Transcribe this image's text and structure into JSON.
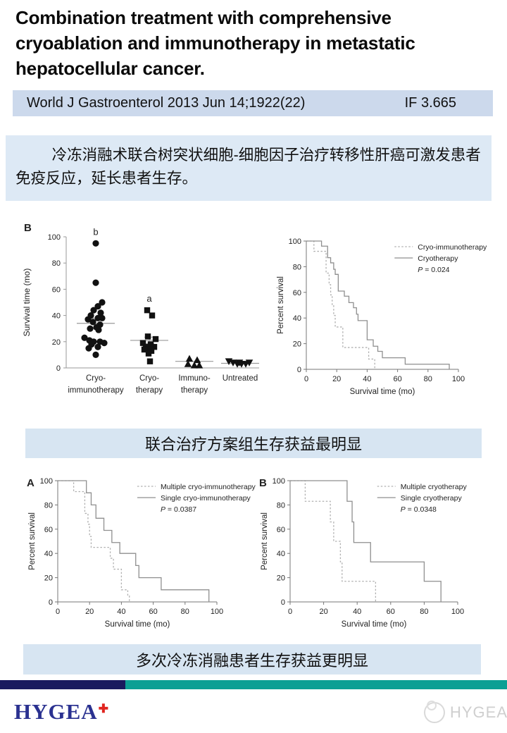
{
  "title": "Combination treatment with comprehensive cryoablation and immunotherapy in metastatic hepatocellular cancer.",
  "citation": {
    "journal": "World J Gastroenterol 2013 Jun 14;1922(22)",
    "impact_factor": "IF 3.665"
  },
  "summary_cn": "冷冻消融术联合树突状细胞-细胞因子治疗转移性肝癌可激发患者免疫反应，延长患者生存。",
  "caption1": "联合治疗方案组生存获益最明显",
  "caption2": "多次冷冻消融患者生存获益更明显",
  "footer": {
    "brand": "HYGEA",
    "brand_mark": "✚",
    "watermark": "HYGEA"
  },
  "colors": {
    "citation_bg": "#ccd9ec",
    "summary_bg": "#dde9f5",
    "caption_bg": "#d7e5f2",
    "navy_bar": "#191a5e",
    "teal_bar": "#0b9f94",
    "brand_navy": "#2a3190",
    "brand_red": "#e0251f",
    "km_solid": "#8f8f8f",
    "km_dotted": "#b0b0b0",
    "axis": "#777777",
    "marker": "#111111"
  },
  "chart_data": [
    {
      "id": "dotplot",
      "type": "scatter",
      "panel_label": "B",
      "ylabel": "Survival time (mo)",
      "ylim": [
        0,
        100
      ],
      "yticks": [
        0,
        20,
        40,
        60,
        80,
        100
      ],
      "groups": [
        {
          "label_lines": [
            "Cryo-",
            "immunotherapy"
          ],
          "marker": "circle",
          "annotation": "b",
          "mean": 34,
          "sem": 4,
          "points": [
            [
              0,
              95
            ],
            [
              0,
              65
            ],
            [
              9,
              50
            ],
            [
              3,
              47
            ],
            [
              -3,
              44
            ],
            [
              7,
              42
            ],
            [
              -7,
              40
            ],
            [
              3,
              38
            ],
            [
              9,
              38
            ],
            [
              -11,
              37
            ],
            [
              -4,
              35
            ],
            [
              6,
              33
            ],
            [
              1,
              31
            ],
            [
              -8,
              30
            ],
            [
              4,
              29
            ],
            [
              -16,
              23
            ],
            [
              -9,
              21
            ],
            [
              -3,
              20
            ],
            [
              6,
              20
            ],
            [
              12,
              19
            ],
            [
              -6,
              18
            ],
            [
              3,
              16
            ],
            [
              -10,
              15
            ],
            [
              0,
              10
            ]
          ]
        },
        {
          "label_lines": [
            "Cryo-",
            "therapy"
          ],
          "marker": "square",
          "annotation": "a",
          "mean": 21,
          "sem": 2.5,
          "points": [
            [
              -3,
              44
            ],
            [
              4,
              40
            ],
            [
              -2,
              24
            ],
            [
              9,
              22
            ],
            [
              -9,
              19
            ],
            [
              2,
              18
            ],
            [
              -5,
              16
            ],
            [
              7,
              16
            ],
            [
              1,
              15
            ],
            [
              -7,
              14
            ],
            [
              3,
              13
            ],
            [
              -1,
              11
            ],
            [
              1,
              5
            ]
          ]
        },
        {
          "label_lines": [
            "Immuno-",
            "therapy"
          ],
          "marker": "triangle-up",
          "annotation": "",
          "mean": 5,
          "sem": null,
          "points": [
            [
              -7,
              7
            ],
            [
              4,
              6
            ],
            [
              -9,
              3
            ],
            [
              0,
              2
            ],
            [
              7,
              2
            ]
          ]
        },
        {
          "label_lines": [
            "Untreated"
          ],
          "marker": "triangle-down",
          "annotation": "",
          "mean": 3.5,
          "sem": null,
          "points": [
            [
              -16,
              5
            ],
            [
              -10,
              4
            ],
            [
              -4,
              3
            ],
            [
              2,
              3
            ],
            [
              8,
              3
            ],
            [
              13,
              4
            ],
            [
              -1,
              4
            ]
          ]
        }
      ]
    },
    {
      "id": "km-main",
      "type": "line",
      "panel_label": "",
      "xlabel": "Survival time (mo)",
      "ylabel": "Percent survival",
      "xlim": [
        0,
        100
      ],
      "ylim": [
        0,
        100
      ],
      "xticks": [
        0,
        20,
        40,
        60,
        80,
        100
      ],
      "yticks": [
        0,
        20,
        40,
        60,
        80,
        100
      ],
      "p_value": "P = 0.024",
      "legend_x": 58,
      "series": [
        {
          "name": "Cryo-immunotherapy",
          "style": "dotted",
          "steps": [
            [
              0,
              100
            ],
            [
              5,
              92
            ],
            [
              13,
              75
            ],
            [
              15,
              66
            ],
            [
              16,
              58
            ],
            [
              17,
              50
            ],
            [
              18,
              42
            ],
            [
              19,
              33
            ],
            [
              24,
              17
            ],
            [
              41,
              8
            ],
            [
              45,
              0
            ]
          ]
        },
        {
          "name": "Cryotherapy",
          "style": "solid",
          "steps": [
            [
              0,
              100
            ],
            [
              10,
              96
            ],
            [
              14,
              87
            ],
            [
              16,
              83
            ],
            [
              18,
              78
            ],
            [
              19,
              74
            ],
            [
              21,
              61
            ],
            [
              25,
              57
            ],
            [
              28,
              52
            ],
            [
              31,
              48
            ],
            [
              33,
              43
            ],
            [
              34,
              38
            ],
            [
              40,
              23
            ],
            [
              44,
              18
            ],
            [
              47,
              14
            ],
            [
              50,
              9
            ],
            [
              65,
              4
            ],
            [
              94,
              0
            ]
          ]
        }
      ]
    },
    {
      "id": "km-a",
      "type": "line",
      "panel_label": "A",
      "xlabel": "Survival time (mo)",
      "ylabel": "Percent survival",
      "xlim": [
        0,
        100
      ],
      "ylim": [
        0,
        100
      ],
      "xticks": [
        0,
        20,
        40,
        60,
        80,
        100
      ],
      "yticks": [
        0,
        20,
        40,
        60,
        80,
        100
      ],
      "p_value": "P = 0.0387",
      "legend_x": 50,
      "series": [
        {
          "name": "Multiple cryo-immunotherapy",
          "style": "dotted",
          "steps": [
            [
              0,
              100
            ],
            [
              10,
              91
            ],
            [
              17,
              73
            ],
            [
              19,
              64
            ],
            [
              20,
              54
            ],
            [
              21,
              45
            ],
            [
              33,
              36
            ],
            [
              35,
              27
            ],
            [
              40,
              10
            ],
            [
              44,
              5
            ],
            [
              45,
              0
            ]
          ]
        },
        {
          "name": "Single cryo-immunotherapy",
          "style": "solid",
          "steps": [
            [
              0,
              100
            ],
            [
              18,
              90
            ],
            [
              21,
              80
            ],
            [
              24,
              69
            ],
            [
              29,
              59
            ],
            [
              34,
              49
            ],
            [
              39,
              40
            ],
            [
              49,
              30
            ],
            [
              51,
              20
            ],
            [
              65,
              10
            ],
            [
              95,
              0
            ]
          ]
        }
      ]
    },
    {
      "id": "km-b",
      "type": "line",
      "panel_label": "B",
      "xlabel": "Survival time (mo)",
      "ylabel": "Percent survival",
      "xlim": [
        0,
        100
      ],
      "ylim": [
        0,
        100
      ],
      "xticks": [
        0,
        20,
        40,
        60,
        80,
        100
      ],
      "yticks": [
        0,
        20,
        40,
        60,
        80,
        100
      ],
      "p_value": "P = 0.0348",
      "legend_x": 52,
      "series": [
        {
          "name": "Multiple cryotherapy",
          "style": "dotted",
          "steps": [
            [
              0,
              100
            ],
            [
              9,
              83
            ],
            [
              24,
              66
            ],
            [
              26,
              50
            ],
            [
              30,
              33
            ],
            [
              31,
              17
            ],
            [
              51,
              0
            ]
          ]
        },
        {
          "name": "Single cryotherapy",
          "style": "solid",
          "steps": [
            [
              0,
              100
            ],
            [
              34,
              83
            ],
            [
              37,
              66
            ],
            [
              38,
              49
            ],
            [
              48,
              33
            ],
            [
              80,
              17
            ],
            [
              90,
              0
            ]
          ]
        }
      ]
    }
  ]
}
